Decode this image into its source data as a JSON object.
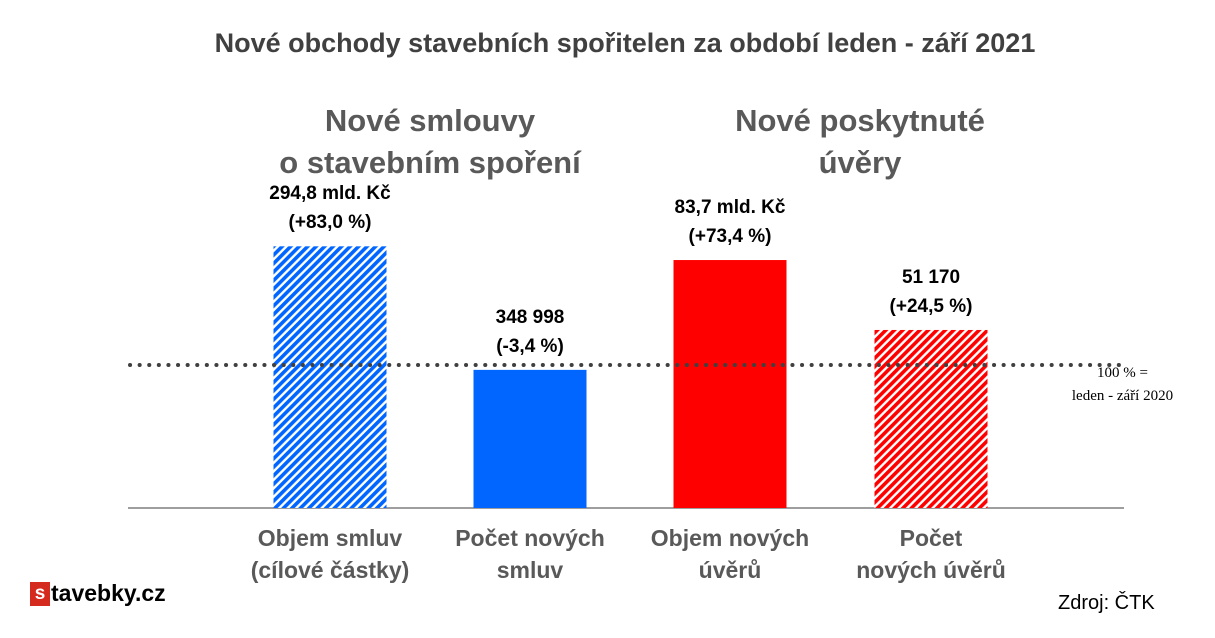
{
  "title": "Nové obchody stavebních spořitelen za období leden - září 2021",
  "groups": [
    {
      "line1": "Nové smlouvy",
      "line2": "o stavebním spoření"
    },
    {
      "line1": "Nové poskytnuté",
      "line2": "úvěry"
    }
  ],
  "reference_line": {
    "line1": "100 % =",
    "line2": "leden - září 2020"
  },
  "brand": {
    "mark": "s",
    "name": "tavebky.cz"
  },
  "source": "Zdroj: ČTK",
  "colors": {
    "blue": "#0066ff",
    "red": "#ff0000",
    "dotted_line": "#404040",
    "baseline": "#7f7f7f"
  },
  "chart_data": {
    "type": "bar",
    "title": "Nové obchody stavebních spořitelen za období leden - září 2021",
    "xlabel": "",
    "ylabel": "",
    "categories": [
      {
        "line1": "Objem smluv",
        "line2": "(cílové částky)"
      },
      {
        "line1": "Počet  nových",
        "line2": "smluv"
      },
      {
        "line1": "Objem nových",
        "line2": "úvěrů"
      },
      {
        "line1": "Počet",
        "line2": "nových úvěrů"
      }
    ],
    "values": [
      183.0,
      96.6,
      173.4,
      124.5
    ],
    "value_labels": [
      {
        "line1": "294,8 mld. Kč",
        "line2": "(+83,0 %)"
      },
      {
        "line1": "348 998",
        "line2": "(-3,4 %)"
      },
      {
        "line1": "83,7 mld. Kč",
        "line2": "(+73,4 %)"
      },
      {
        "line1": "51 170",
        "line2": "(+24,5 %)"
      }
    ],
    "bar_colors": [
      "blue",
      "blue",
      "red",
      "red"
    ],
    "bar_hatched": [
      true,
      false,
      false,
      true
    ],
    "reference_value": 100,
    "ylim": [
      0,
      200
    ]
  }
}
